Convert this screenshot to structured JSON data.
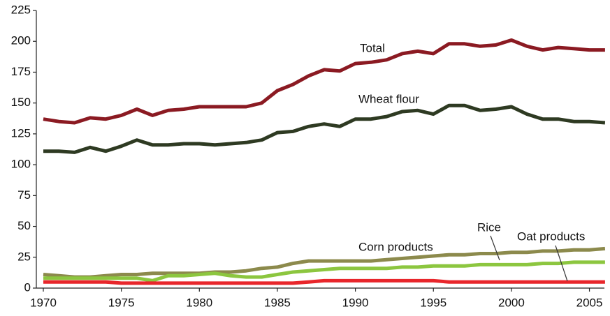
{
  "chart_data": {
    "type": "line",
    "x": [
      1970,
      1971,
      1972,
      1973,
      1974,
      1975,
      1976,
      1977,
      1978,
      1979,
      1980,
      1981,
      1982,
      1983,
      1984,
      1985,
      1986,
      1987,
      1988,
      1989,
      1990,
      1991,
      1992,
      1993,
      1994,
      1995,
      1996,
      1997,
      1998,
      1999,
      2000,
      2001,
      2002,
      2003,
      2004,
      2005,
      2006
    ],
    "xlim": [
      1970,
      2006
    ],
    "xticks": [
      1970,
      1975,
      1980,
      1985,
      1990,
      1995,
      2000,
      2005
    ],
    "ylim": [
      0,
      225
    ],
    "yticks": [
      0,
      25,
      50,
      75,
      100,
      125,
      150,
      175,
      200,
      225
    ],
    "grid": false,
    "series": [
      {
        "name": "Total",
        "color": "#8b1a22",
        "values": [
          137,
          135,
          134,
          138,
          137,
          140,
          145,
          140,
          144,
          145,
          147,
          147,
          147,
          147,
          150,
          160,
          165,
          172,
          177,
          176,
          182,
          183,
          185,
          190,
          192,
          190,
          198,
          198,
          196,
          197,
          201,
          196,
          193,
          195,
          194,
          193,
          193
        ]
      },
      {
        "name": "Wheat flour",
        "color": "#2e3a22",
        "values": [
          111,
          111,
          110,
          114,
          111,
          115,
          120,
          116,
          116,
          117,
          117,
          116,
          117,
          118,
          120,
          126,
          127,
          131,
          133,
          131,
          137,
          137,
          139,
          143,
          144,
          141,
          148,
          148,
          144,
          145,
          147,
          141,
          137,
          137,
          135,
          135,
          134
        ]
      },
      {
        "name": "Corn products",
        "color": "#8c8a4c",
        "values": [
          11,
          10,
          9,
          9,
          10,
          11,
          11,
          12,
          12,
          12,
          12,
          13,
          13,
          14,
          16,
          17,
          20,
          22,
          22,
          22,
          22,
          22,
          23,
          24,
          25,
          26,
          27,
          27,
          28,
          28,
          29,
          29,
          30,
          30,
          31,
          31,
          32
        ]
      },
      {
        "name": "Rice",
        "color": "#8cc63f",
        "values": [
          8,
          8,
          8,
          8,
          8,
          8,
          8,
          6,
          10,
          10,
          11,
          12,
          10,
          9,
          9,
          11,
          13,
          14,
          15,
          16,
          16,
          16,
          16,
          17,
          17,
          18,
          18,
          18,
          19,
          19,
          19,
          19,
          20,
          20,
          21,
          21,
          21
        ]
      },
      {
        "name": "Oat products",
        "color": "#e8262b",
        "values": [
          5,
          5,
          5,
          5,
          5,
          4,
          4,
          4,
          4,
          4,
          4,
          4,
          4,
          4,
          4,
          4,
          4,
          5,
          6,
          6,
          6,
          6,
          6,
          6,
          6,
          6,
          5,
          5,
          5,
          5,
          5,
          5,
          5,
          5,
          5,
          5,
          5
        ]
      }
    ]
  }
}
